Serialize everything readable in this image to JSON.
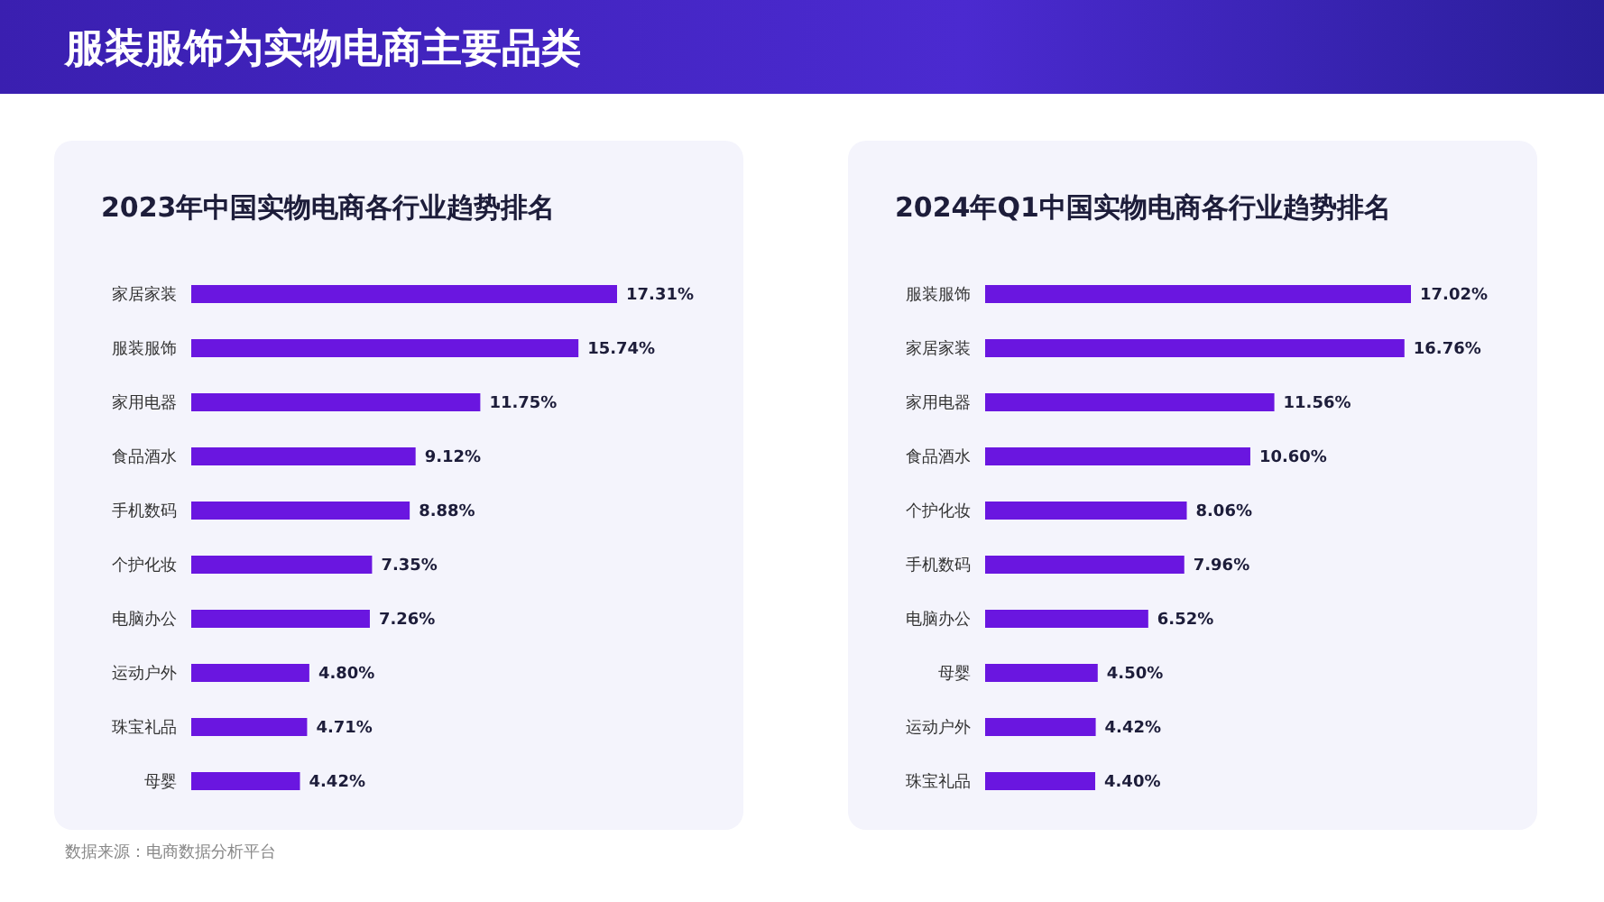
{
  "chart_data": [
    {
      "type": "bar",
      "orientation": "horizontal",
      "title": "服装服饰为实物电商主要品类",
      "subtitle": "2023年中国实物电商各行业趋势排名",
      "categories": [
        "家居家装",
        "服装服饰",
        "家用电器",
        "食品酒水",
        "手机数码",
        "个护化妆",
        "电脑办公",
        "运动户外",
        "珠宝礼品",
        "母婴"
      ],
      "values": [
        17.31,
        15.74,
        11.75,
        9.12,
        8.88,
        7.35,
        7.26,
        4.8,
        4.71,
        4.42
      ],
      "value_labels": [
        "17.31%",
        "15.74%",
        "11.75%",
        "9.12%",
        "8.88%",
        "7.35%",
        "7.26%",
        "4.80%",
        "4.71%",
        "4.42%"
      ],
      "color": "#6a16e0",
      "annotations": [
        "数据来源：电商数据分析平台"
      ]
    },
    {
      "type": "bar",
      "orientation": "horizontal",
      "title": "2024年Q1中国实物电商各行业趋势排名",
      "categories": [
        "服装服饰",
        "家居家装",
        "家用电器",
        "食品酒水",
        "个护化妆",
        "手机数码",
        "电脑办公",
        "母婴",
        "运动户外",
        "珠宝礼品"
      ],
      "values": [
        17.02,
        16.76,
        11.56,
        10.6,
        8.06,
        7.96,
        6.52,
        4.5,
        4.42,
        4.4
      ],
      "value_labels": [
        "17.02%",
        "16.76%",
        "11.56%",
        "10.60%",
        "8.06%",
        "7.96%",
        "6.52%",
        "4.50%",
        "4.42%",
        "4.40%"
      ],
      "color": "#6a16e0"
    }
  ]
}
